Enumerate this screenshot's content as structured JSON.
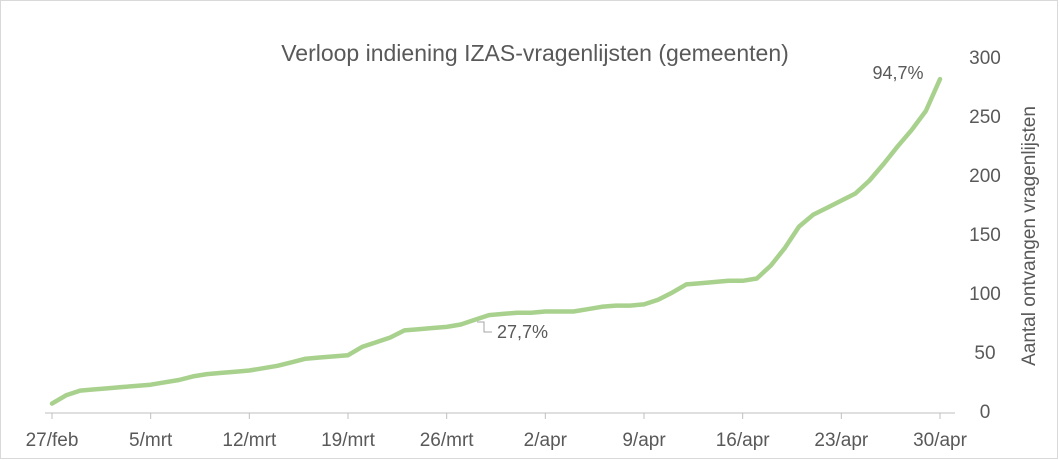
{
  "chart_data": {
    "type": "line",
    "title": "Verloop indiening IZAS-vragenlijsten (gemeenten)",
    "y_axis_label": "Aantal ontvangen vragenlijsten",
    "categories": [
      "27/feb",
      null,
      null,
      null,
      null,
      null,
      null,
      "5/mrt",
      null,
      null,
      null,
      null,
      null,
      null,
      "12/mrt",
      null,
      null,
      null,
      null,
      null,
      null,
      "19/mrt",
      null,
      null,
      null,
      null,
      null,
      null,
      "26/mrt",
      null,
      null,
      null,
      null,
      null,
      null,
      "2/apr",
      null,
      null,
      null,
      null,
      null,
      null,
      "9/apr",
      null,
      null,
      null,
      null,
      null,
      null,
      "16/apr",
      null,
      null,
      null,
      null,
      null,
      null,
      "23/apr",
      null,
      null,
      null,
      null,
      null,
      null,
      "30/apr"
    ],
    "values": [
      8,
      15,
      19,
      20,
      21,
      22,
      23,
      24,
      26,
      28,
      31,
      33,
      34,
      35,
      36,
      38,
      40,
      43,
      46,
      47,
      48,
      49,
      56,
      60,
      64,
      70,
      71,
      72,
      73,
      75,
      79,
      83,
      84,
      85,
      85,
      86,
      86,
      86,
      88,
      90,
      91,
      91,
      92,
      96,
      102,
      109,
      110,
      111,
      112,
      112,
      114,
      125,
      140,
      158,
      168,
      174,
      180,
      186,
      197,
      211,
      226,
      240,
      256,
      283
    ],
    "color": "#a9d18e",
    "ylim": [
      0,
      300
    ],
    "yticks": [
      0,
      50,
      100,
      150,
      200,
      250,
      300
    ],
    "y_axis_side": "right",
    "grid": false,
    "annotations": [
      "27,7%",
      "94,7%"
    ]
  }
}
